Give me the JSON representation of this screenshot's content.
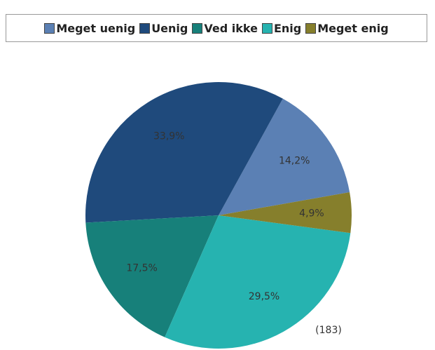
{
  "chart_data": {
    "type": "pie",
    "categories": [
      "Meget uenig",
      "Uenig",
      "Ved ikke",
      "Enig",
      "Meget enig"
    ],
    "values": [
      14.2,
      33.9,
      17.5,
      29.5,
      4.9
    ],
    "value_labels": [
      "14,2%",
      "33,9%",
      "17,5%",
      "29,5%",
      "4,9%"
    ],
    "colors": [
      "#5b80b4",
      "#1f4a7c",
      "#17807a",
      "#26b3b0",
      "#867f2c"
    ],
    "annotation": "(183)",
    "legend": "top"
  }
}
